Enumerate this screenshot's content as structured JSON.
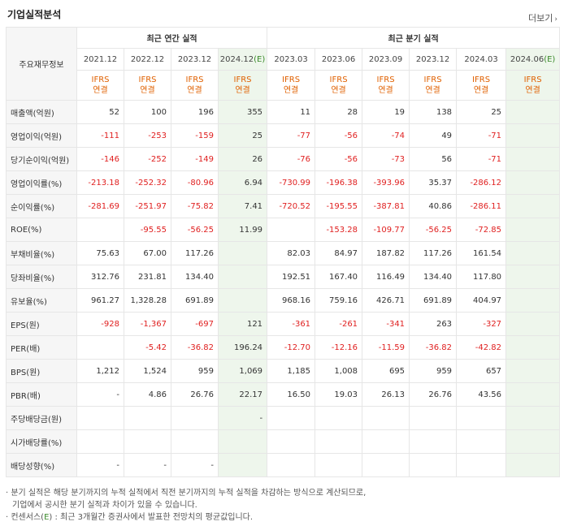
{
  "title": "기업실적분석",
  "more_label": "더보기",
  "header": {
    "row_header": "주요재무정보",
    "annual_group": "최근 연간 실적",
    "quarter_group": "최근 분기 실적"
  },
  "periods": [
    {
      "label": "2021.12",
      "est": ""
    },
    {
      "label": "2022.12",
      "est": ""
    },
    {
      "label": "2023.12",
      "est": ""
    },
    {
      "label": "2024.12",
      "est": "(E)"
    },
    {
      "label": "2023.03",
      "est": ""
    },
    {
      "label": "2023.06",
      "est": ""
    },
    {
      "label": "2023.09",
      "est": ""
    },
    {
      "label": "2023.12",
      "est": ""
    },
    {
      "label": "2024.03",
      "est": ""
    },
    {
      "label": "2024.06",
      "est": "(E)"
    }
  ],
  "ifrs": {
    "line1": "IFRS",
    "line2": "연결"
  },
  "rows": [
    {
      "label": "매출액(억원)",
      "values": [
        "52",
        "100",
        "196",
        "355",
        "11",
        "28",
        "19",
        "138",
        "25",
        ""
      ]
    },
    {
      "label": "영업이익(억원)",
      "values": [
        "-111",
        "-253",
        "-159",
        "25",
        "-77",
        "-56",
        "-74",
        "49",
        "-71",
        ""
      ]
    },
    {
      "label": "당기순이익(억원)",
      "values": [
        "-146",
        "-252",
        "-149",
        "26",
        "-76",
        "-56",
        "-73",
        "56",
        "-71",
        ""
      ]
    },
    {
      "label": "영업이익률(%)",
      "values": [
        "-213.18",
        "-252.32",
        "-80.96",
        "6.94",
        "-730.99",
        "-196.38",
        "-393.96",
        "35.37",
        "-286.12",
        ""
      ]
    },
    {
      "label": "순이익률(%)",
      "values": [
        "-281.69",
        "-251.97",
        "-75.82",
        "7.41",
        "-720.52",
        "-195.55",
        "-387.81",
        "40.86",
        "-286.11",
        ""
      ]
    },
    {
      "label": "ROE(%)",
      "values": [
        "",
        "-95.55",
        "-56.25",
        "11.99",
        "",
        "-153.28",
        "-109.77",
        "-56.25",
        "-72.85",
        ""
      ]
    },
    {
      "label": "부채비율(%)",
      "values": [
        "75.63",
        "67.00",
        "117.26",
        "",
        "82.03",
        "84.97",
        "187.82",
        "117.26",
        "161.54",
        ""
      ]
    },
    {
      "label": "당좌비율(%)",
      "values": [
        "312.76",
        "231.81",
        "134.40",
        "",
        "192.51",
        "167.40",
        "116.49",
        "134.40",
        "117.80",
        ""
      ]
    },
    {
      "label": "유보율(%)",
      "values": [
        "961.27",
        "1,328.28",
        "691.89",
        "",
        "968.16",
        "759.16",
        "426.71",
        "691.89",
        "404.97",
        ""
      ]
    },
    {
      "label": "EPS(원)",
      "values": [
        "-928",
        "-1,367",
        "-697",
        "121",
        "-361",
        "-261",
        "-341",
        "263",
        "-327",
        ""
      ]
    },
    {
      "label": "PER(배)",
      "values": [
        "",
        "-5.42",
        "-36.82",
        "196.24",
        "-12.70",
        "-12.16",
        "-11.59",
        "-36.82",
        "-42.82",
        ""
      ]
    },
    {
      "label": "BPS(원)",
      "values": [
        "1,212",
        "1,524",
        "959",
        "1,069",
        "1,185",
        "1,008",
        "695",
        "959",
        "657",
        ""
      ]
    },
    {
      "label": "PBR(배)",
      "values": [
        "-",
        "4.86",
        "26.76",
        "22.17",
        "16.50",
        "19.03",
        "26.13",
        "26.76",
        "43.56",
        ""
      ]
    },
    {
      "label": "주당배당금(원)",
      "values": [
        "",
        "",
        "",
        "-",
        "",
        "",
        "",
        "",
        "",
        ""
      ]
    },
    {
      "label": "시가배당률(%)",
      "values": [
        "",
        "",
        "",
        "",
        "",
        "",
        "",
        "",
        "",
        ""
      ]
    },
    {
      "label": "배당성향(%)",
      "values": [
        "-",
        "-",
        "-",
        "",
        "",
        "",
        "",
        "",
        "",
        ""
      ]
    }
  ],
  "notes": {
    "line1": "· 분기 실적은 해당 분기까지의 누적 실적에서 직전 분기까지의 누적 실적을 차감하는 방식으로 계산되므로,",
    "line2": "기업에서 공시한 분기 실적과 차이가 있을 수 있습니다.",
    "line3_prefix": "· 컨센서스(",
    "line3_e": "E",
    "line3_suffix": ") : 최근 3개월간 증권사에서 발표한 전망치의 평균값입니다."
  }
}
